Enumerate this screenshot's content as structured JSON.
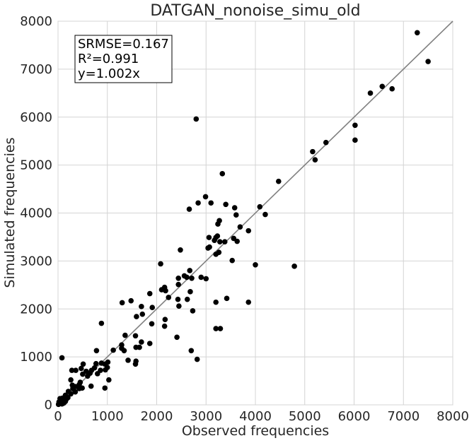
{
  "chart_data": {
    "type": "scatter",
    "title": "DATGAN_nonoise_simu_old",
    "xlabel": "Observed frequencies",
    "ylabel": "Simulated frequencies",
    "xlim": [
      0,
      8000
    ],
    "ylim": [
      0,
      8000
    ],
    "xticks": [
      "0",
      "1000",
      "2000",
      "3000",
      "4000",
      "5000",
      "6000",
      "7000",
      "8000"
    ],
    "yticks": [
      "0",
      "1000",
      "2000",
      "3000",
      "4000",
      "5000",
      "6000",
      "7000",
      "8000"
    ],
    "grid": true,
    "stats": {
      "srmse": "SRMSE=0.167",
      "r2": "R²=0.991",
      "fit": "y=1.002x"
    },
    "reference_line": {
      "slope": 1.002,
      "color": "#808080"
    },
    "marker_color": "#000000",
    "points": [
      [
        7280,
        7760
      ],
      [
        7500,
        7160
      ],
      [
        6570,
        6640
      ],
      [
        6770,
        6590
      ],
      [
        6330,
        6500
      ],
      [
        6020,
        5830
      ],
      [
        6020,
        5520
      ],
      [
        5430,
        5470
      ],
      [
        5160,
        5280
      ],
      [
        5210,
        5110
      ],
      [
        4470,
        4660
      ],
      [
        2800,
        5960
      ],
      [
        3330,
        4820
      ],
      [
        2990,
        4340
      ],
      [
        3100,
        4210
      ],
      [
        2840,
        4210
      ],
      [
        3400,
        4180
      ],
      [
        2660,
        4080
      ],
      [
        4090,
        4130
      ],
      [
        3580,
        4110
      ],
      [
        4200,
        3970
      ],
      [
        3610,
        3960
      ],
      [
        3270,
        3840
      ],
      [
        3240,
        3770
      ],
      [
        3690,
        3710
      ],
      [
        3860,
        3630
      ],
      [
        3230,
        3520
      ],
      [
        3200,
        3490
      ],
      [
        3060,
        3490
      ],
      [
        3170,
        3430
      ],
      [
        3560,
        3470
      ],
      [
        3280,
        3400
      ],
      [
        3380,
        3400
      ],
      [
        3630,
        3410
      ],
      [
        3070,
        3290
      ],
      [
        3040,
        3270
      ],
      [
        3260,
        3180
      ],
      [
        3200,
        3140
      ],
      [
        3530,
        3010
      ],
      [
        2480,
        3230
      ],
      [
        2080,
        2940
      ],
      [
        4000,
        2920
      ],
      [
        4790,
        2890
      ],
      [
        2670,
        2800
      ],
      [
        2560,
        2690
      ],
      [
        2610,
        2660
      ],
      [
        2440,
        2640
      ],
      [
        2710,
        2640
      ],
      [
        2900,
        2660
      ],
      [
        3000,
        2630
      ],
      [
        2440,
        2510
      ],
      [
        2100,
        2400
      ],
      [
        2160,
        2450
      ],
      [
        2180,
        2380
      ],
      [
        2680,
        2360
      ],
      [
        1860,
        2320
      ],
      [
        2240,
        2240
      ],
      [
        2430,
        2200
      ],
      [
        2620,
        2200
      ],
      [
        3420,
        2220
      ],
      [
        3860,
        2140
      ],
      [
        3200,
        2140
      ],
      [
        1300,
        2130
      ],
      [
        1480,
        2170
      ],
      [
        1690,
        2050
      ],
      [
        2450,
        2060
      ],
      [
        1910,
        2030
      ],
      [
        2730,
        1960
      ],
      [
        1710,
        1890
      ],
      [
        1590,
        1840
      ],
      [
        2170,
        1780
      ],
      [
        880,
        1700
      ],
      [
        1900,
        1690
      ],
      [
        2160,
        1640
      ],
      [
        3200,
        1590
      ],
      [
        3290,
        1590
      ],
      [
        1360,
        1450
      ],
      [
        1570,
        1440
      ],
      [
        2410,
        1410
      ],
      [
        1690,
        1310
      ],
      [
        1860,
        1280
      ],
      [
        1290,
        1250
      ],
      [
        1290,
        1180
      ],
      [
        1580,
        1200
      ],
      [
        1650,
        1200
      ],
      [
        1120,
        1140
      ],
      [
        1340,
        1130
      ],
      [
        780,
        1130
      ],
      [
        2700,
        1130
      ],
      [
        1420,
        930
      ],
      [
        1580,
        910
      ],
      [
        1570,
        850
      ],
      [
        2820,
        950
      ],
      [
        1010,
        890
      ],
      [
        770,
        860
      ],
      [
        880,
        870
      ],
      [
        950,
        850
      ],
      [
        1000,
        780
      ],
      [
        510,
        850
      ],
      [
        470,
        760
      ],
      [
        740,
        770
      ],
      [
        680,
        720
      ],
      [
        860,
        720
      ],
      [
        960,
        730
      ],
      [
        360,
        720
      ],
      [
        280,
        720
      ],
      [
        570,
        700
      ],
      [
        500,
        640
      ],
      [
        650,
        660
      ],
      [
        800,
        650
      ],
      [
        600,
        600
      ],
      [
        450,
        470
      ],
      [
        430,
        420
      ],
      [
        290,
        410
      ],
      [
        350,
        380
      ],
      [
        430,
        340
      ],
      [
        490,
        350
      ],
      [
        670,
        390
      ],
      [
        950,
        350
      ],
      [
        1030,
        520
      ],
      [
        80,
        980
      ],
      [
        260,
        520
      ],
      [
        300,
        340
      ],
      [
        210,
        280
      ],
      [
        260,
        230
      ],
      [
        350,
        270
      ],
      [
        150,
        200
      ],
      [
        200,
        150
      ],
      [
        110,
        110
      ],
      [
        60,
        80
      ],
      [
        30,
        40
      ],
      [
        150,
        70
      ],
      [
        80,
        20
      ],
      [
        10,
        10
      ],
      [
        40,
        130
      ],
      [
        120,
        40
      ],
      [
        20,
        60
      ],
      [
        90,
        140
      ],
      [
        170,
        120
      ],
      [
        100,
        30
      ]
    ]
  }
}
